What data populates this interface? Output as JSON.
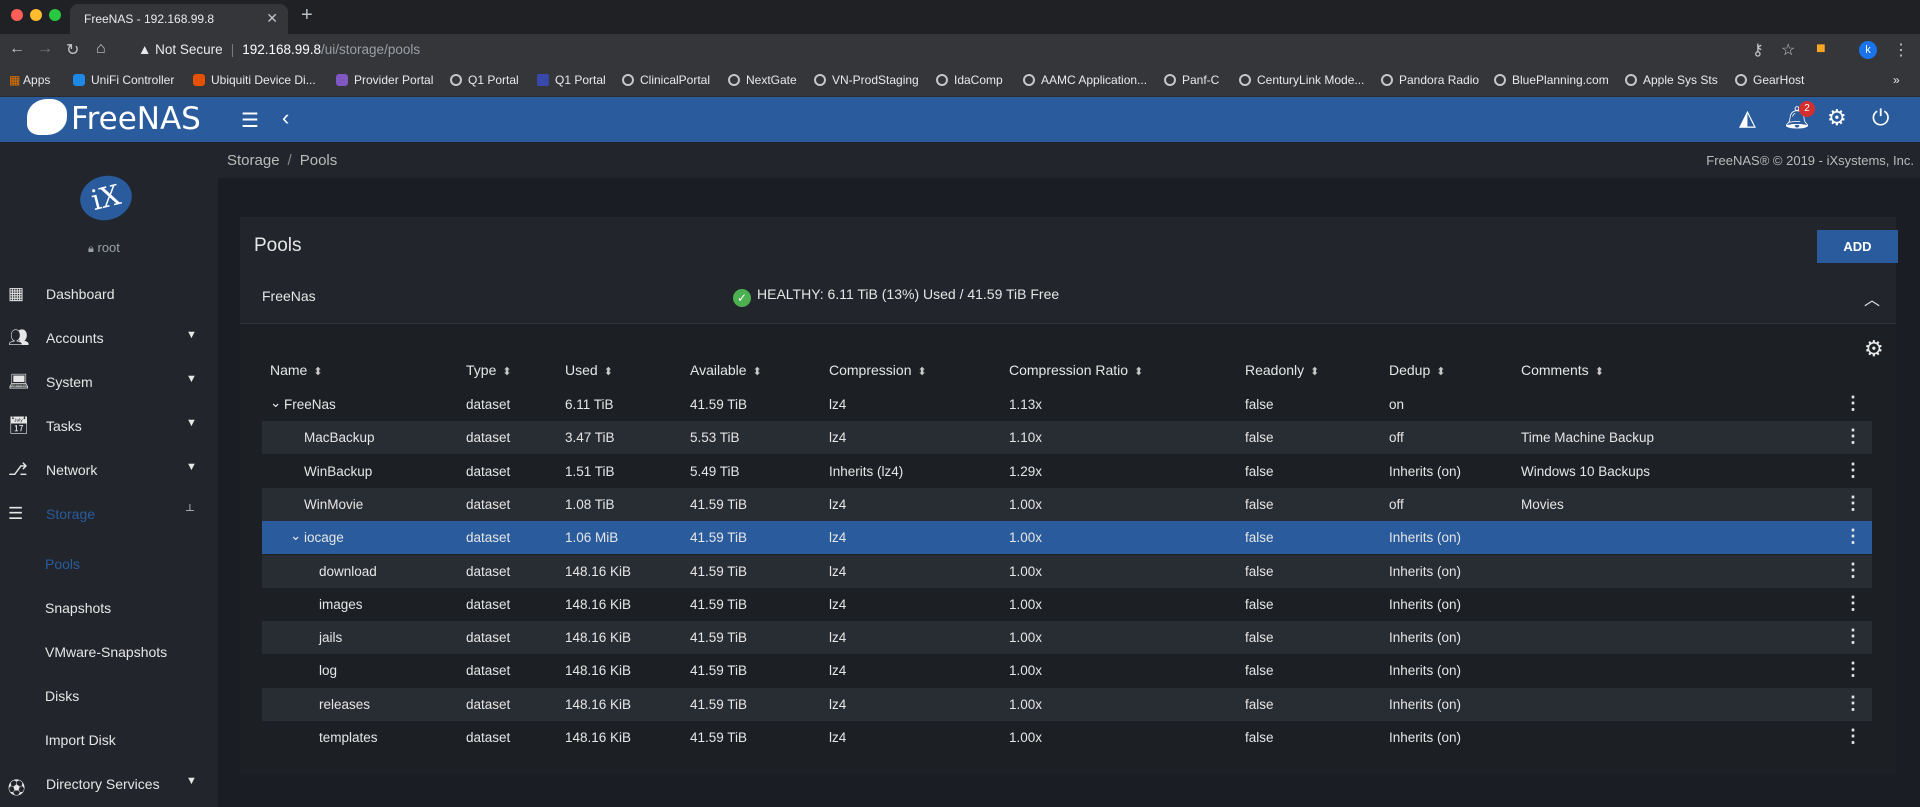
{
  "browser": {
    "tab_title": "FreeNAS - 192.168.99.8",
    "security_label": "Not Secure",
    "url_host": "192.168.99.8",
    "url_path": "/ui/storage/pools",
    "bookmarks": [
      "Apps",
      "UniFi Controller",
      "Ubiquiti Device Di...",
      "Provider Portal",
      "Q1 Portal",
      "Q1 Portal",
      "ClinicalPortal",
      "NextGate",
      "VN-ProdStaging",
      "IdaComp",
      "AAMC Application...",
      "Panf-C",
      "CenturyLink Mode...",
      "Pandora Radio",
      "BluePlanning.com",
      "Apple Sys Sts",
      "GearHost"
    ],
    "profile_initial": "k"
  },
  "app": {
    "logo_text": "FreeNAS",
    "notifications_count": "2",
    "user": "root",
    "ix_text": "iX"
  },
  "sidebar": {
    "items": [
      {
        "label": "Dashboard",
        "icon": "dashboard-icon"
      },
      {
        "label": "Accounts",
        "icon": "people-icon"
      },
      {
        "label": "System",
        "icon": "laptop-icon"
      },
      {
        "label": "Tasks",
        "icon": "calendar-icon"
      },
      {
        "label": "Network",
        "icon": "network-icon"
      },
      {
        "label": "Storage",
        "icon": "storage-icon"
      },
      {
        "label": "Directory Services",
        "icon": "directory-icon"
      }
    ],
    "storage_sub": [
      "Pools",
      "Snapshots",
      "VMware-Snapshots",
      "Disks",
      "Import Disk"
    ]
  },
  "breadcrumb": {
    "root": "Storage",
    "current": "Pools"
  },
  "copyright": "FreeNAS® © 2019 - iXsystems, Inc.",
  "pools": {
    "title": "Pools",
    "add_label": "ADD",
    "pool_name": "FreeNas",
    "health": "HEALTHY: 6.11 TiB (13%) Used / 41.59 TiB Free"
  },
  "table": {
    "headers": [
      "Name",
      "Type",
      "Used",
      "Available",
      "Compression",
      "Compression Ratio",
      "Readonly",
      "Dedup",
      "Comments"
    ],
    "rows": [
      {
        "name": "FreeNas",
        "type": "dataset",
        "used": "6.11 TiB",
        "available": "41.59 TiB",
        "compression": "lz4",
        "ratio": "1.13x",
        "readonly": "false",
        "dedup": "on",
        "comments": ""
      },
      {
        "name": "MacBackup",
        "type": "dataset",
        "used": "3.47 TiB",
        "available": "5.53 TiB",
        "compression": "lz4",
        "ratio": "1.10x",
        "readonly": "false",
        "dedup": "off",
        "comments": "Time Machine Backup"
      },
      {
        "name": "WinBackup",
        "type": "dataset",
        "used": "1.51 TiB",
        "available": "5.49 TiB",
        "compression": "Inherits (lz4)",
        "ratio": "1.29x",
        "readonly": "false",
        "dedup": "Inherits (on)",
        "comments": "Windows 10 Backups"
      },
      {
        "name": "WinMovie",
        "type": "dataset",
        "used": "1.08 TiB",
        "available": "41.59 TiB",
        "compression": "lz4",
        "ratio": "1.00x",
        "readonly": "false",
        "dedup": "off",
        "comments": "Movies"
      },
      {
        "name": "iocage",
        "type": "dataset",
        "used": "1.06 MiB",
        "available": "41.59 TiB",
        "compression": "lz4",
        "ratio": "1.00x",
        "readonly": "false",
        "dedup": "Inherits (on)",
        "comments": ""
      },
      {
        "name": "download",
        "type": "dataset",
        "used": "148.16 KiB",
        "available": "41.59 TiB",
        "compression": "lz4",
        "ratio": "1.00x",
        "readonly": "false",
        "dedup": "Inherits (on)",
        "comments": ""
      },
      {
        "name": "images",
        "type": "dataset",
        "used": "148.16 KiB",
        "available": "41.59 TiB",
        "compression": "lz4",
        "ratio": "1.00x",
        "readonly": "false",
        "dedup": "Inherits (on)",
        "comments": ""
      },
      {
        "name": "jails",
        "type": "dataset",
        "used": "148.16 KiB",
        "available": "41.59 TiB",
        "compression": "lz4",
        "ratio": "1.00x",
        "readonly": "false",
        "dedup": "Inherits (on)",
        "comments": ""
      },
      {
        "name": "log",
        "type": "dataset",
        "used": "148.16 KiB",
        "available": "41.59 TiB",
        "compression": "lz4",
        "ratio": "1.00x",
        "readonly": "false",
        "dedup": "Inherits (on)",
        "comments": ""
      },
      {
        "name": "releases",
        "type": "dataset",
        "used": "148.16 KiB",
        "available": "41.59 TiB",
        "compression": "lz4",
        "ratio": "1.00x",
        "readonly": "false",
        "dedup": "Inherits (on)",
        "comments": ""
      },
      {
        "name": "templates",
        "type": "dataset",
        "used": "148.16 KiB",
        "available": "41.59 TiB",
        "compression": "lz4",
        "ratio": "1.00x",
        "readonly": "false",
        "dedup": "Inherits (on)",
        "comments": ""
      }
    ]
  },
  "colors": {
    "accent": "#2a5b9c",
    "healthy": "#4caf50",
    "badge": "#d32f2f"
  }
}
